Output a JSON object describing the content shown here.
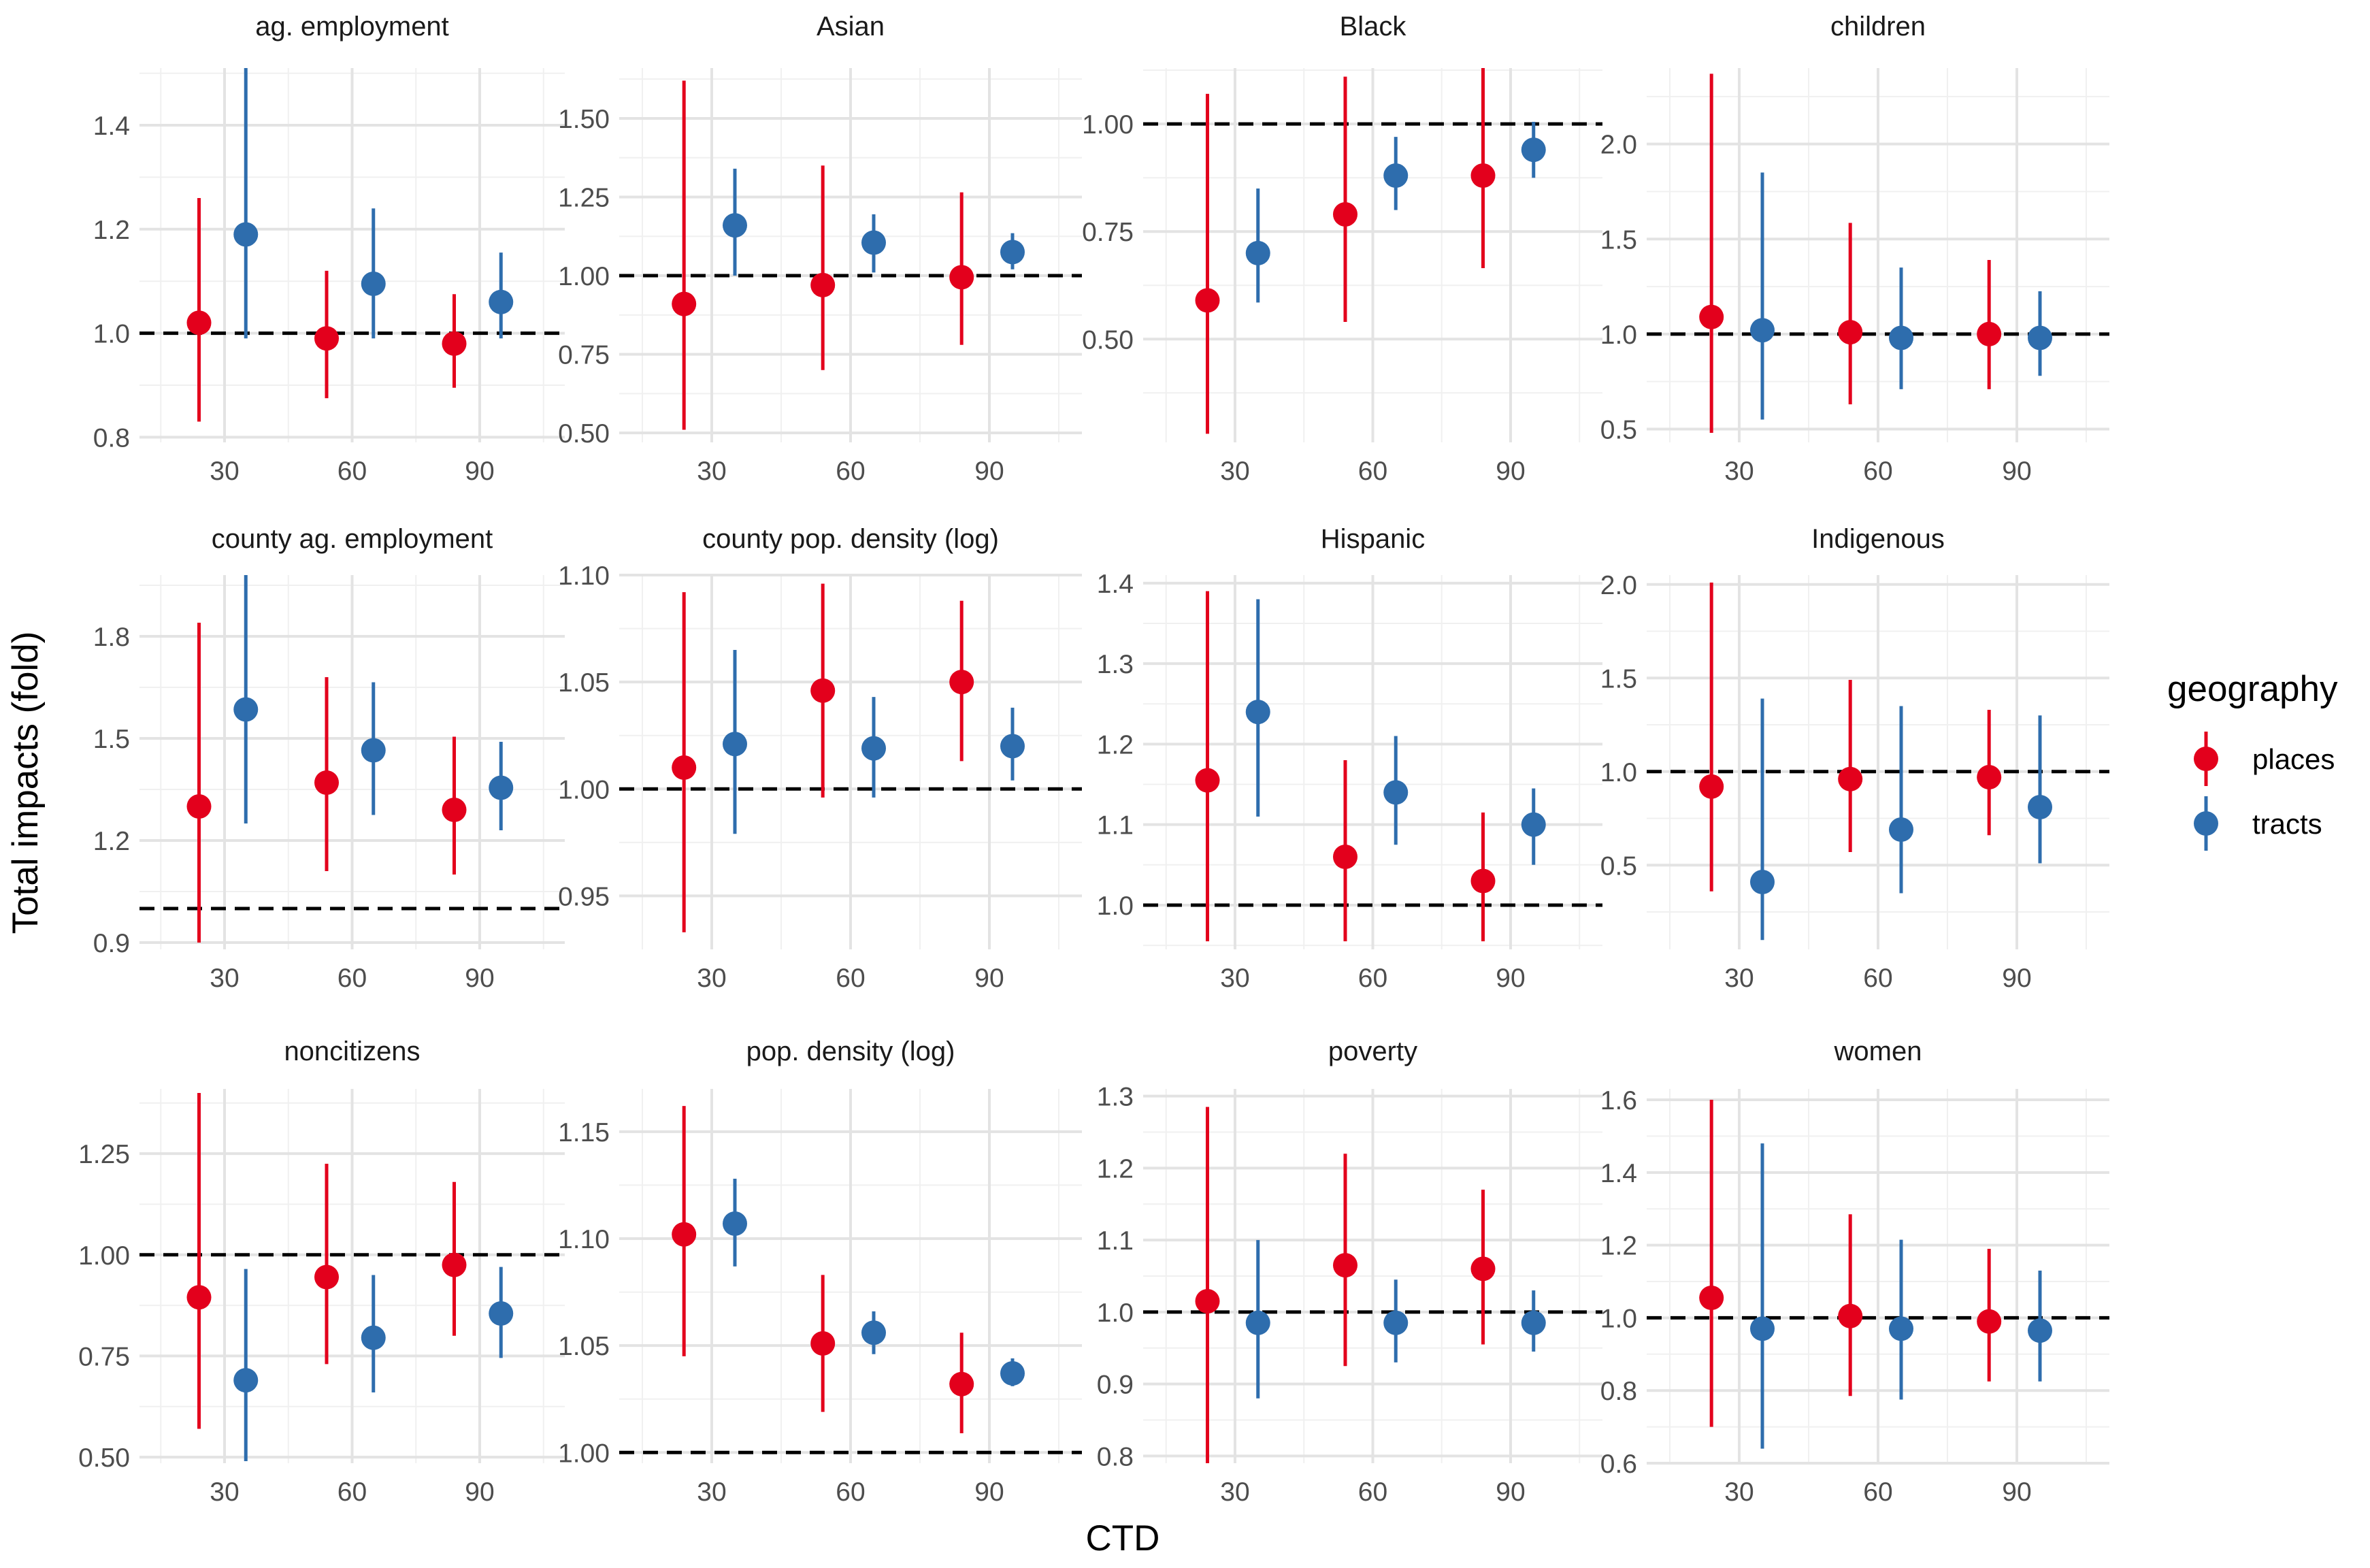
{
  "chart_data": {
    "type": "errorbar-facets",
    "xlabel": "CTD",
    "ylabel": "Total impacts (fold)",
    "x_ticks": [
      30,
      60,
      90
    ],
    "x_range": [
      10,
      110
    ],
    "reference_line": 1.0,
    "legend": {
      "title": "geography",
      "position": "right",
      "entries": [
        {
          "name": "places",
          "color": "#E3001C"
        },
        {
          "name": "tracts",
          "color": "#2E6DAD"
        }
      ]
    },
    "series_offsets": {
      "places": -6,
      "tracts": 5
    },
    "panels": [
      {
        "title": "ag. employment",
        "ylim": [
          0.79,
          1.51
        ],
        "yticks": [
          "0.8",
          "1.0",
          "1.2",
          "1.4"
        ],
        "points": [
          {
            "series": "places",
            "ctd": 30,
            "est": 1.02,
            "lo": 0.83,
            "hi": 1.26
          },
          {
            "series": "tracts",
            "ctd": 30,
            "est": 1.19,
            "lo": 0.99,
            "hi": 1.51
          },
          {
            "series": "places",
            "ctd": 60,
            "est": 0.99,
            "lo": 0.875,
            "hi": 1.12
          },
          {
            "series": "tracts",
            "ctd": 60,
            "est": 1.095,
            "lo": 0.99,
            "hi": 1.24
          },
          {
            "series": "places",
            "ctd": 90,
            "est": 0.98,
            "lo": 0.895,
            "hi": 1.075
          },
          {
            "series": "tracts",
            "ctd": 90,
            "est": 1.06,
            "lo": 0.99,
            "hi": 1.155
          }
        ]
      },
      {
        "title": "Asian",
        "ylim": [
          0.47,
          1.66
        ],
        "yticks": [
          "0.50",
          "0.75",
          "1.00",
          "1.25",
          "1.50"
        ],
        "points": [
          {
            "series": "places",
            "ctd": 30,
            "est": 0.91,
            "lo": 0.51,
            "hi": 1.62
          },
          {
            "series": "tracts",
            "ctd": 30,
            "est": 1.16,
            "lo": 1.0,
            "hi": 1.34
          },
          {
            "series": "places",
            "ctd": 60,
            "est": 0.97,
            "lo": 0.7,
            "hi": 1.35
          },
          {
            "series": "tracts",
            "ctd": 60,
            "est": 1.105,
            "lo": 1.01,
            "hi": 1.195
          },
          {
            "series": "places",
            "ctd": 90,
            "est": 0.995,
            "lo": 0.78,
            "hi": 1.265
          },
          {
            "series": "tracts",
            "ctd": 90,
            "est": 1.075,
            "lo": 1.02,
            "hi": 1.135
          }
        ]
      },
      {
        "title": "Black",
        "ylim": [
          0.26,
          1.13
        ],
        "yticks": [
          "0.50",
          "0.75",
          "1.00"
        ],
        "points": [
          {
            "series": "places",
            "ctd": 30,
            "est": 0.59,
            "lo": 0.28,
            "hi": 1.07
          },
          {
            "series": "tracts",
            "ctd": 30,
            "est": 0.7,
            "lo": 0.585,
            "hi": 0.85
          },
          {
            "series": "places",
            "ctd": 60,
            "est": 0.79,
            "lo": 0.54,
            "hi": 1.11
          },
          {
            "series": "tracts",
            "ctd": 60,
            "est": 0.88,
            "lo": 0.8,
            "hi": 0.97
          },
          {
            "series": "places",
            "ctd": 90,
            "est": 0.88,
            "lo": 0.665,
            "hi": 1.13
          },
          {
            "series": "tracts",
            "ctd": 90,
            "est": 0.94,
            "lo": 0.875,
            "hi": 1.005
          }
        ]
      },
      {
        "title": "children",
        "ylim": [
          0.43,
          2.4
        ],
        "yticks": [
          "0.5",
          "1.0",
          "1.5",
          "2.0"
        ],
        "points": [
          {
            "series": "places",
            "ctd": 30,
            "est": 1.09,
            "lo": 0.48,
            "hi": 2.37
          },
          {
            "series": "tracts",
            "ctd": 30,
            "est": 1.02,
            "lo": 0.55,
            "hi": 1.85
          },
          {
            "series": "places",
            "ctd": 60,
            "est": 1.01,
            "lo": 0.63,
            "hi": 1.585
          },
          {
            "series": "tracts",
            "ctd": 60,
            "est": 0.98,
            "lo": 0.71,
            "hi": 1.35
          },
          {
            "series": "places",
            "ctd": 90,
            "est": 1.0,
            "lo": 0.71,
            "hi": 1.39
          },
          {
            "series": "tracts",
            "ctd": 90,
            "est": 0.98,
            "lo": 0.78,
            "hi": 1.225
          }
        ]
      },
      {
        "title": "county ag. employment",
        "ylim": [
          0.88,
          1.98
        ],
        "yticks": [
          "0.9",
          "1.2",
          "1.5",
          "1.8"
        ],
        "points": [
          {
            "series": "places",
            "ctd": 30,
            "est": 1.3,
            "lo": 0.9,
            "hi": 1.84
          },
          {
            "series": "tracts",
            "ctd": 30,
            "est": 1.585,
            "lo": 1.25,
            "hi": 1.98
          },
          {
            "series": "places",
            "ctd": 60,
            "est": 1.37,
            "lo": 1.11,
            "hi": 1.68
          },
          {
            "series": "tracts",
            "ctd": 60,
            "est": 1.465,
            "lo": 1.275,
            "hi": 1.665
          },
          {
            "series": "places",
            "ctd": 90,
            "est": 1.29,
            "lo": 1.1,
            "hi": 1.505
          },
          {
            "series": "tracts",
            "ctd": 90,
            "est": 1.355,
            "lo": 1.23,
            "hi": 1.49
          }
        ]
      },
      {
        "title": "county pop. density (log)",
        "ylim": [
          0.925,
          1.1
        ],
        "yticks": [
          "0.95",
          "1.00",
          "1.05",
          "1.10"
        ],
        "points": [
          {
            "series": "places",
            "ctd": 30,
            "est": 1.01,
            "lo": 0.933,
            "hi": 1.092
          },
          {
            "series": "tracts",
            "ctd": 30,
            "est": 1.021,
            "lo": 0.979,
            "hi": 1.065
          },
          {
            "series": "places",
            "ctd": 60,
            "est": 1.046,
            "lo": 0.996,
            "hi": 1.096
          },
          {
            "series": "tracts",
            "ctd": 60,
            "est": 1.019,
            "lo": 0.996,
            "hi": 1.043
          },
          {
            "series": "places",
            "ctd": 90,
            "est": 1.05,
            "lo": 1.013,
            "hi": 1.088
          },
          {
            "series": "tracts",
            "ctd": 90,
            "est": 1.02,
            "lo": 1.004,
            "hi": 1.038
          }
        ]
      },
      {
        "title": "Hispanic",
        "ylim": [
          0.945,
          1.41
        ],
        "yticks": [
          "1.0",
          "1.1",
          "1.2",
          "1.3",
          "1.4"
        ],
        "points": [
          {
            "series": "places",
            "ctd": 30,
            "est": 1.155,
            "lo": 0.955,
            "hi": 1.39
          },
          {
            "series": "tracts",
            "ctd": 30,
            "est": 1.24,
            "lo": 1.11,
            "hi": 1.38
          },
          {
            "series": "places",
            "ctd": 60,
            "est": 1.06,
            "lo": 0.955,
            "hi": 1.18
          },
          {
            "series": "tracts",
            "ctd": 60,
            "est": 1.14,
            "lo": 1.075,
            "hi": 1.21
          },
          {
            "series": "places",
            "ctd": 90,
            "est": 1.03,
            "lo": 0.955,
            "hi": 1.115
          },
          {
            "series": "tracts",
            "ctd": 90,
            "est": 1.1,
            "lo": 1.05,
            "hi": 1.145
          }
        ]
      },
      {
        "title": "Indigenous",
        "ylim": [
          0.05,
          2.05
        ],
        "yticks": [
          "0.5",
          "1.0",
          "1.5",
          "2.0"
        ],
        "points": [
          {
            "series": "places",
            "ctd": 30,
            "est": 0.92,
            "lo": 0.36,
            "hi": 2.01
          },
          {
            "series": "tracts",
            "ctd": 30,
            "est": 0.41,
            "lo": 0.1,
            "hi": 1.39
          },
          {
            "series": "places",
            "ctd": 60,
            "est": 0.96,
            "lo": 0.57,
            "hi": 1.49
          },
          {
            "series": "tracts",
            "ctd": 60,
            "est": 0.69,
            "lo": 0.35,
            "hi": 1.35
          },
          {
            "series": "places",
            "ctd": 90,
            "est": 0.97,
            "lo": 0.66,
            "hi": 1.33
          },
          {
            "series": "tracts",
            "ctd": 90,
            "est": 0.81,
            "lo": 0.51,
            "hi": 1.3
          }
        ]
      },
      {
        "title": "noncitizens",
        "ylim": [
          0.485,
          1.41
        ],
        "yticks": [
          "0.50",
          "0.75",
          "1.00",
          "1.25"
        ],
        "points": [
          {
            "series": "places",
            "ctd": 30,
            "est": 0.895,
            "lo": 0.57,
            "hi": 1.4
          },
          {
            "series": "tracts",
            "ctd": 30,
            "est": 0.69,
            "lo": 0.49,
            "hi": 0.965
          },
          {
            "series": "places",
            "ctd": 60,
            "est": 0.945,
            "lo": 0.73,
            "hi": 1.225
          },
          {
            "series": "tracts",
            "ctd": 60,
            "est": 0.795,
            "lo": 0.66,
            "hi": 0.95
          },
          {
            "series": "places",
            "ctd": 90,
            "est": 0.975,
            "lo": 0.8,
            "hi": 1.18
          },
          {
            "series": "tracts",
            "ctd": 90,
            "est": 0.855,
            "lo": 0.745,
            "hi": 0.97
          }
        ]
      },
      {
        "title": "pop. density (log)",
        "ylim": [
          0.995,
          1.17
        ],
        "yticks": [
          "1.00",
          "1.05",
          "1.10",
          "1.15"
        ],
        "points": [
          {
            "series": "places",
            "ctd": 30,
            "est": 1.102,
            "lo": 1.045,
            "hi": 1.162
          },
          {
            "series": "tracts",
            "ctd": 30,
            "est": 1.107,
            "lo": 1.087,
            "hi": 1.128
          },
          {
            "series": "places",
            "ctd": 60,
            "est": 1.051,
            "lo": 1.019,
            "hi": 1.083
          },
          {
            "series": "tracts",
            "ctd": 60,
            "est": 1.056,
            "lo": 1.046,
            "hi": 1.066
          },
          {
            "series": "places",
            "ctd": 90,
            "est": 1.032,
            "lo": 1.009,
            "hi": 1.056
          },
          {
            "series": "tracts",
            "ctd": 90,
            "est": 1.037,
            "lo": 1.031,
            "hi": 1.044
          }
        ]
      },
      {
        "title": "poverty",
        "ylim": [
          0.79,
          1.31
        ],
        "yticks": [
          "0.8",
          "0.9",
          "1.0",
          "1.1",
          "1.2",
          "1.3"
        ],
        "points": [
          {
            "series": "places",
            "ctd": 30,
            "est": 1.015,
            "lo": 0.79,
            "hi": 1.285
          },
          {
            "series": "tracts",
            "ctd": 30,
            "est": 0.985,
            "lo": 0.88,
            "hi": 1.1
          },
          {
            "series": "places",
            "ctd": 60,
            "est": 1.065,
            "lo": 0.925,
            "hi": 1.22
          },
          {
            "series": "tracts",
            "ctd": 60,
            "est": 0.985,
            "lo": 0.93,
            "hi": 1.045
          },
          {
            "series": "places",
            "ctd": 90,
            "est": 1.06,
            "lo": 0.955,
            "hi": 1.17
          },
          {
            "series": "tracts",
            "ctd": 90,
            "est": 0.985,
            "lo": 0.945,
            "hi": 1.03
          }
        ]
      },
      {
        "title": "women",
        "ylim": [
          0.6,
          1.63
        ],
        "yticks": [
          "0.6",
          "0.8",
          "1.0",
          "1.2",
          "1.4",
          "1.6"
        ],
        "points": [
          {
            "series": "places",
            "ctd": 30,
            "est": 1.055,
            "lo": 0.7,
            "hi": 1.6
          },
          {
            "series": "tracts",
            "ctd": 30,
            "est": 0.97,
            "lo": 0.64,
            "hi": 1.48
          },
          {
            "series": "places",
            "ctd": 60,
            "est": 1.005,
            "lo": 0.785,
            "hi": 1.285
          },
          {
            "series": "tracts",
            "ctd": 60,
            "est": 0.97,
            "lo": 0.775,
            "hi": 1.215
          },
          {
            "series": "places",
            "ctd": 90,
            "est": 0.99,
            "lo": 0.825,
            "hi": 1.19
          },
          {
            "series": "tracts",
            "ctd": 90,
            "est": 0.965,
            "lo": 0.825,
            "hi": 1.13
          }
        ]
      }
    ]
  }
}
